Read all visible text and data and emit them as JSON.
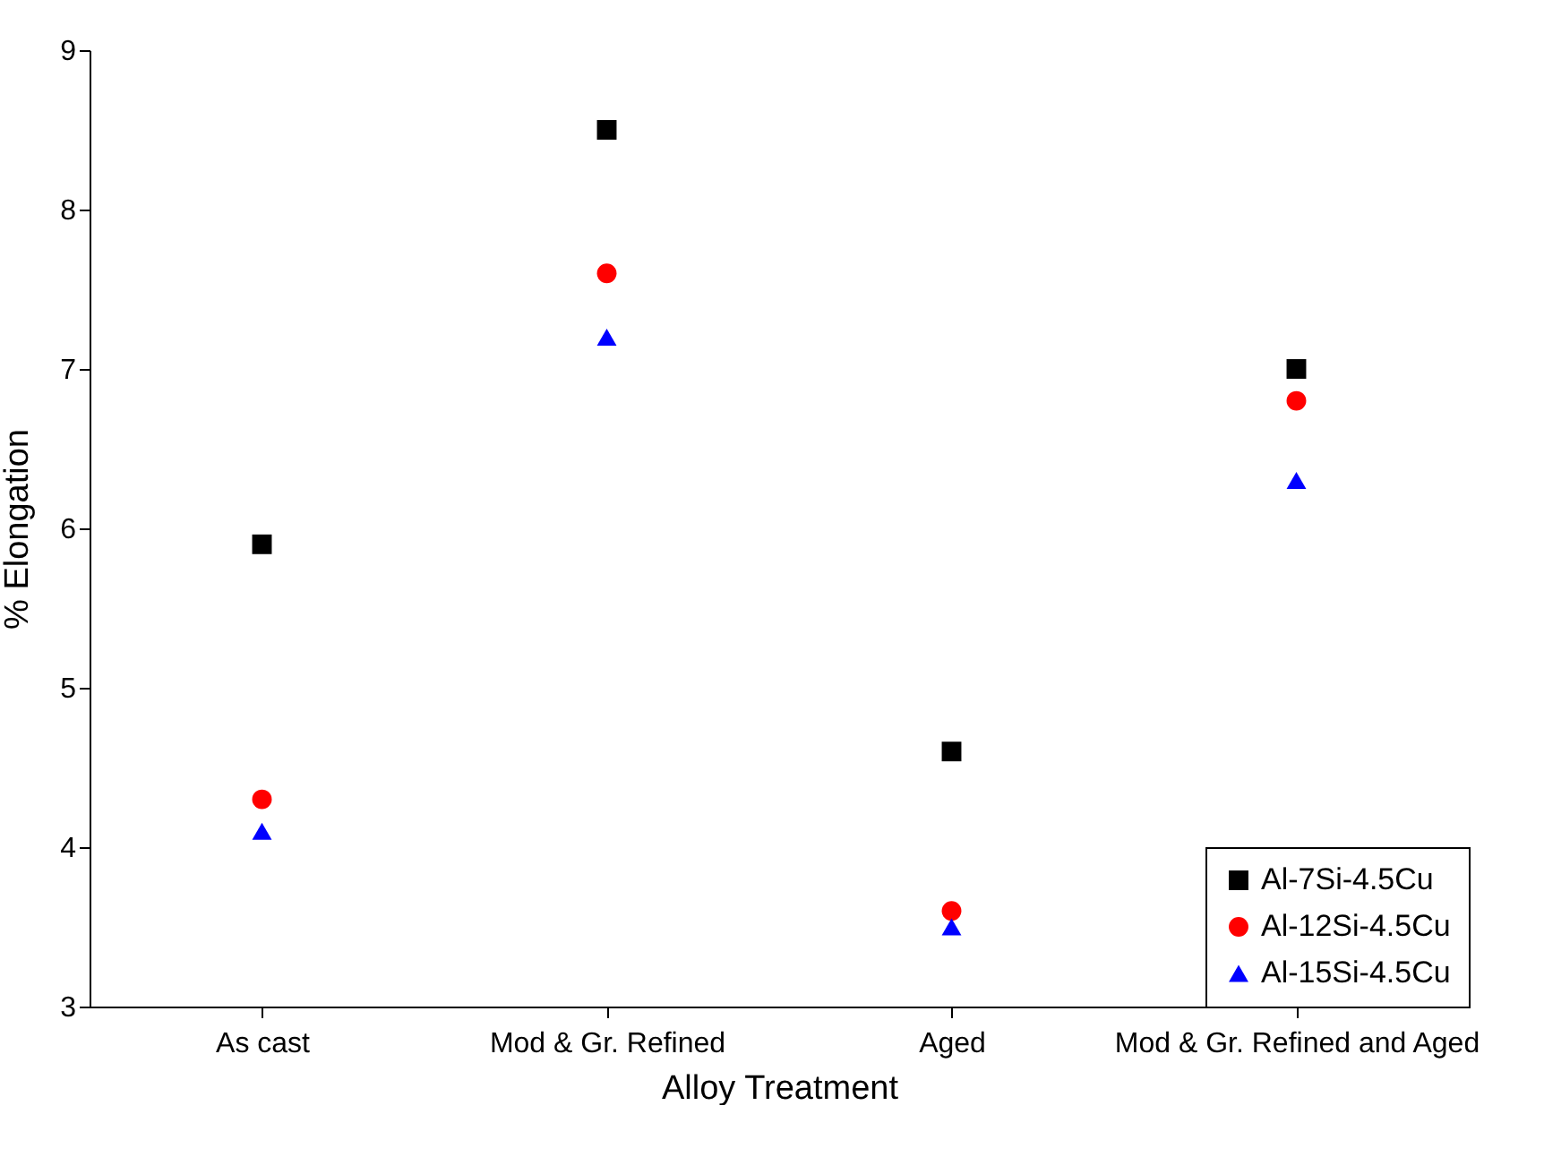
{
  "chart_data": {
    "type": "scatter",
    "xlabel": "Alloy Treatment",
    "ylabel": "% Elongation",
    "categories": [
      "As cast",
      "Mod & Gr. Refined",
      "Aged",
      "Mod & Gr. Refined and Aged"
    ],
    "series": [
      {
        "name": "Al-7Si-4.5Cu",
        "color": "#000000",
        "marker": "square",
        "values": [
          5.9,
          8.5,
          4.6,
          7.0
        ]
      },
      {
        "name": "Al-12Si-4.5Cu",
        "color": "#ff0000",
        "marker": "circle",
        "values": [
          4.3,
          7.6,
          3.6,
          6.8
        ]
      },
      {
        "name": "Al-15Si-4.5Cu",
        "color": "#0000ff",
        "marker": "triangle",
        "values": [
          4.1,
          7.2,
          3.5,
          6.3
        ]
      }
    ],
    "ylim": [
      3,
      9
    ],
    "yticks": [
      3,
      4,
      5,
      6,
      7,
      8,
      9
    ],
    "grid": false,
    "legend": "bottom right"
  }
}
